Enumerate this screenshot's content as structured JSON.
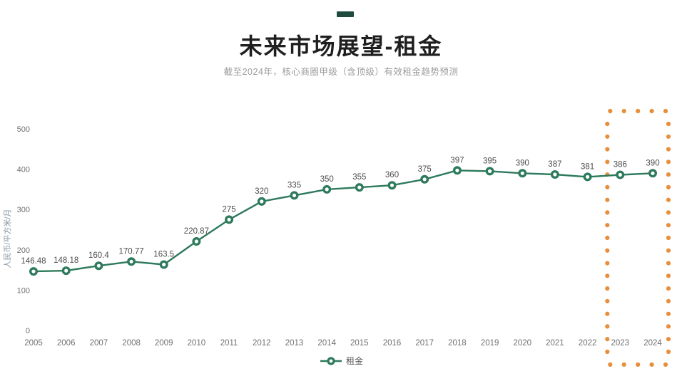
{
  "header": {
    "title": "未来市场展望-租金",
    "subtitle": "截至2024年，核心商圈甲级（含顶级）有效租金趋势预测",
    "accent_dash_color": "#1e4b3d"
  },
  "chart_data": {
    "type": "line",
    "title": "未来市场展望-租金",
    "subtitle": "截至2024年，核心商圈甲级（含顶级）有效租金趋势预测",
    "categories": [
      "2005",
      "2006",
      "2007",
      "2008",
      "2009",
      "2010",
      "2011",
      "2012",
      "2013",
      "2014",
      "2015",
      "2016",
      "2017",
      "2018",
      "2019",
      "2020",
      "2021",
      "2022",
      "2023",
      "2024"
    ],
    "series": [
      {
        "name": "租金",
        "values": [
          146.48,
          148.18,
          160.4,
          170.77,
          163.5,
          220.87,
          275,
          320,
          335,
          350,
          355,
          360,
          375,
          397,
          395,
          390,
          387,
          381,
          386,
          390
        ],
        "color": "#2d7a5c",
        "marker": "donut"
      }
    ],
    "ylabel": "人民币/平方米/月",
    "xlabel": "",
    "yticks": [
      0,
      100,
      200,
      300,
      400,
      500
    ],
    "ylim": [
      0,
      500
    ],
    "grid": false,
    "legend_position": "bottom",
    "data_labels": true,
    "highlight": {
      "categories": [
        "2023",
        "2024"
      ],
      "style": "dotted-rect",
      "color": "#e78f3c",
      "meaning": "forecast period"
    }
  },
  "legend": {
    "items": [
      {
        "label": "租金",
        "color": "#2d7a5c"
      }
    ]
  },
  "colors": {
    "line": "#2d7a5c",
    "title_text": "#1f1f1f",
    "subtitle_text": "#9b9b9b",
    "data_label_text": "#4d4d4d",
    "axis_tick_text": "#707070",
    "y_axis_title_text": "#8795a1",
    "highlight_orange": "#e78f3c",
    "background": "#ffffff"
  }
}
